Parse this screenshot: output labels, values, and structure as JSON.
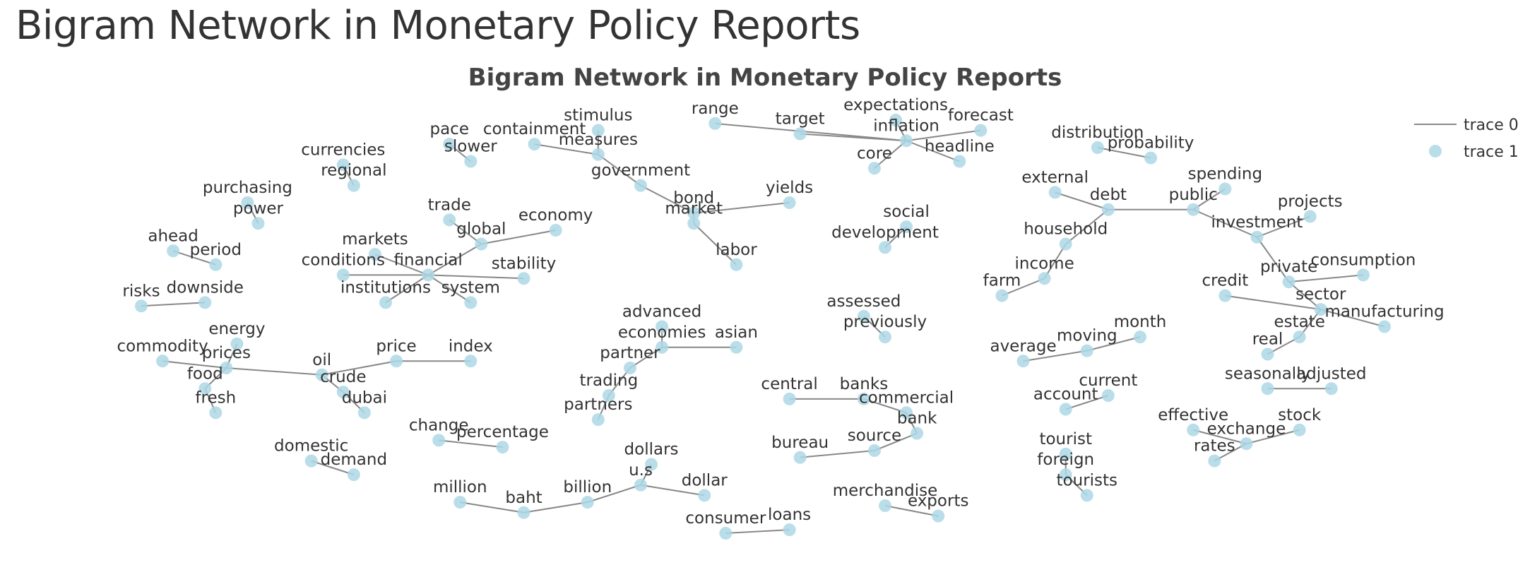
{
  "page": {
    "title": "Bigram Network in Monetary Policy Reports"
  },
  "chart_data": {
    "type": "network",
    "title": "Bigram Network in Monetary Policy Reports",
    "edge_color": "#888888",
    "node_color": "#add8e6",
    "legend": {
      "placement": "top-right",
      "entries": [
        {
          "name": "trace 0",
          "marker": "line"
        },
        {
          "name": "trace 1",
          "marker": "circle"
        }
      ]
    },
    "nodes": [
      {
        "id": "range",
        "x": 3.6,
        "y": 8.3
      },
      {
        "id": "target",
        "x": 4.0,
        "y": 8.15
      },
      {
        "id": "inflation",
        "x": 4.5,
        "y": 8.05
      },
      {
        "id": "expectations",
        "x": 4.45,
        "y": 8.35
      },
      {
        "id": "forecast",
        "x": 4.85,
        "y": 8.2
      },
      {
        "id": "headline",
        "x": 4.75,
        "y": 7.75
      },
      {
        "id": "core",
        "x": 4.35,
        "y": 7.65
      },
      {
        "id": "stimulus",
        "x": 3.05,
        "y": 8.2
      },
      {
        "id": "measures",
        "x": 3.05,
        "y": 7.85
      },
      {
        "id": "containment",
        "x": 2.75,
        "y": 8.0
      },
      {
        "id": "government",
        "x": 3.25,
        "y": 7.4
      },
      {
        "id": "bond",
        "x": 3.5,
        "y": 7.0
      },
      {
        "id": "yields",
        "x": 3.95,
        "y": 7.15
      },
      {
        "id": "market",
        "x": 3.5,
        "y": 6.85
      },
      {
        "id": "labor",
        "x": 3.7,
        "y": 6.25
      },
      {
        "id": "pace",
        "x": 2.35,
        "y": 8.0
      },
      {
        "id": "slower",
        "x": 2.45,
        "y": 7.75
      },
      {
        "id": "currencies",
        "x": 1.85,
        "y": 7.7
      },
      {
        "id": "regional",
        "x": 1.9,
        "y": 7.4
      },
      {
        "id": "purchasing",
        "x": 1.4,
        "y": 7.15
      },
      {
        "id": "power",
        "x": 1.45,
        "y": 6.85
      },
      {
        "id": "trade",
        "x": 2.35,
        "y": 6.9
      },
      {
        "id": "global",
        "x": 2.5,
        "y": 6.55
      },
      {
        "id": "economy",
        "x": 2.85,
        "y": 6.75
      },
      {
        "id": "markets",
        "x": 2.0,
        "y": 6.4
      },
      {
        "id": "financial",
        "x": 2.25,
        "y": 6.1
      },
      {
        "id": "conditions",
        "x": 1.85,
        "y": 6.1
      },
      {
        "id": "institutions",
        "x": 2.05,
        "y": 5.7
      },
      {
        "id": "system",
        "x": 2.45,
        "y": 5.7
      },
      {
        "id": "stability",
        "x": 2.7,
        "y": 6.05
      },
      {
        "id": "ahead",
        "x": 1.05,
        "y": 6.45
      },
      {
        "id": "period",
        "x": 1.25,
        "y": 6.25
      },
      {
        "id": "risks",
        "x": 0.9,
        "y": 5.65
      },
      {
        "id": "downside",
        "x": 1.2,
        "y": 5.7
      },
      {
        "id": "energy",
        "x": 1.35,
        "y": 5.1
      },
      {
        "id": "commodity",
        "x": 1.0,
        "y": 4.85
      },
      {
        "id": "prices",
        "x": 1.3,
        "y": 4.75
      },
      {
        "id": "food",
        "x": 1.2,
        "y": 4.45
      },
      {
        "id": "fresh",
        "x": 1.25,
        "y": 4.1
      },
      {
        "id": "oil",
        "x": 1.75,
        "y": 4.65
      },
      {
        "id": "crude",
        "x": 1.85,
        "y": 4.4
      },
      {
        "id": "dubai",
        "x": 1.95,
        "y": 4.1
      },
      {
        "id": "price",
        "x": 2.1,
        "y": 4.85
      },
      {
        "id": "index",
        "x": 2.45,
        "y": 4.85
      },
      {
        "id": "domestic",
        "x": 1.7,
        "y": 3.4
      },
      {
        "id": "demand",
        "x": 1.9,
        "y": 3.2
      },
      {
        "id": "change",
        "x": 2.3,
        "y": 3.7
      },
      {
        "id": "percentage",
        "x": 2.6,
        "y": 3.6
      },
      {
        "id": "million",
        "x": 2.4,
        "y": 2.8
      },
      {
        "id": "baht",
        "x": 2.7,
        "y": 2.65
      },
      {
        "id": "billion",
        "x": 3.0,
        "y": 2.8
      },
      {
        "id": "u.s",
        "x": 3.25,
        "y": 3.05
      },
      {
        "id": "dollars",
        "x": 3.3,
        "y": 3.35
      },
      {
        "id": "dollar",
        "x": 3.55,
        "y": 2.9
      },
      {
        "id": "consumer",
        "x": 3.65,
        "y": 2.35
      },
      {
        "id": "loans",
        "x": 3.95,
        "y": 2.4
      },
      {
        "id": "advanced",
        "x": 3.35,
        "y": 5.35
      },
      {
        "id": "economies",
        "x": 3.35,
        "y": 5.05
      },
      {
        "id": "asian",
        "x": 3.7,
        "y": 5.05
      },
      {
        "id": "partner",
        "x": 3.2,
        "y": 4.75
      },
      {
        "id": "trading",
        "x": 3.1,
        "y": 4.35
      },
      {
        "id": "partners",
        "x": 3.05,
        "y": 4.0
      },
      {
        "id": "central",
        "x": 3.95,
        "y": 4.3
      },
      {
        "id": "banks",
        "x": 4.3,
        "y": 4.3
      },
      {
        "id": "commercial",
        "x": 4.5,
        "y": 4.1
      },
      {
        "id": "bank",
        "x": 4.55,
        "y": 3.8
      },
      {
        "id": "source",
        "x": 4.35,
        "y": 3.55
      },
      {
        "id": "bureau",
        "x": 4.0,
        "y": 3.45
      },
      {
        "id": "merchandise",
        "x": 4.4,
        "y": 2.75
      },
      {
        "id": "exports",
        "x": 4.65,
        "y": 2.6
      },
      {
        "id": "assessed",
        "x": 4.3,
        "y": 5.5
      },
      {
        "id": "previously",
        "x": 4.4,
        "y": 5.2
      },
      {
        "id": "social",
        "x": 4.5,
        "y": 6.8
      },
      {
        "id": "development",
        "x": 4.4,
        "y": 6.5
      },
      {
        "id": "distribution",
        "x": 5.4,
        "y": 7.95
      },
      {
        "id": "probability",
        "x": 5.65,
        "y": 7.8
      },
      {
        "id": "external",
        "x": 5.2,
        "y": 7.3
      },
      {
        "id": "debt",
        "x": 5.45,
        "y": 7.05
      },
      {
        "id": "household",
        "x": 5.25,
        "y": 6.55
      },
      {
        "id": "income",
        "x": 5.15,
        "y": 6.05
      },
      {
        "id": "farm",
        "x": 4.95,
        "y": 5.8
      },
      {
        "id": "public",
        "x": 5.85,
        "y": 7.05
      },
      {
        "id": "spending",
        "x": 6.0,
        "y": 7.35
      },
      {
        "id": "investment",
        "x": 6.15,
        "y": 6.65
      },
      {
        "id": "projects",
        "x": 6.4,
        "y": 6.95
      },
      {
        "id": "private",
        "x": 6.3,
        "y": 6.0
      },
      {
        "id": "sector",
        "x": 6.45,
        "y": 5.6
      },
      {
        "id": "credit",
        "x": 6.0,
        "y": 5.8
      },
      {
        "id": "consumption",
        "x": 6.65,
        "y": 6.1
      },
      {
        "id": "manufacturing",
        "x": 6.75,
        "y": 5.35
      },
      {
        "id": "estate",
        "x": 6.35,
        "y": 5.2
      },
      {
        "id": "real",
        "x": 6.2,
        "y": 4.95
      },
      {
        "id": "average",
        "x": 5.05,
        "y": 4.85
      },
      {
        "id": "moving",
        "x": 5.35,
        "y": 5.0
      },
      {
        "id": "month",
        "x": 5.6,
        "y": 5.2
      },
      {
        "id": "seasonally",
        "x": 6.2,
        "y": 4.45
      },
      {
        "id": "adjusted",
        "x": 6.5,
        "y": 4.45
      },
      {
        "id": "current",
        "x": 5.45,
        "y": 4.35
      },
      {
        "id": "account",
        "x": 5.25,
        "y": 4.15
      },
      {
        "id": "effective",
        "x": 5.85,
        "y": 3.85
      },
      {
        "id": "exchange",
        "x": 6.1,
        "y": 3.65
      },
      {
        "id": "stock",
        "x": 6.35,
        "y": 3.85
      },
      {
        "id": "rates",
        "x": 5.95,
        "y": 3.4
      },
      {
        "id": "tourist",
        "x": 5.25,
        "y": 3.5
      },
      {
        "id": "foreign",
        "x": 5.25,
        "y": 3.2
      },
      {
        "id": "tourists",
        "x": 5.35,
        "y": 2.9
      }
    ],
    "edges": [
      [
        "range",
        "inflation"
      ],
      [
        "target",
        "inflation"
      ],
      [
        "inflation",
        "expectations"
      ],
      [
        "inflation",
        "forecast"
      ],
      [
        "headline",
        "inflation"
      ],
      [
        "core",
        "inflation"
      ],
      [
        "stimulus",
        "measures"
      ],
      [
        "containment",
        "measures"
      ],
      [
        "government",
        "measures"
      ],
      [
        "government",
        "bond"
      ],
      [
        "bond",
        "yields"
      ],
      [
        "bond",
        "market"
      ],
      [
        "labor",
        "market"
      ],
      [
        "slower",
        "pace"
      ],
      [
        "regional",
        "currencies"
      ],
      [
        "purchasing",
        "power"
      ],
      [
        "trade",
        "global"
      ],
      [
        "global",
        "economy"
      ],
      [
        "global",
        "financial"
      ],
      [
        "markets",
        "financial"
      ],
      [
        "financial",
        "conditions"
      ],
      [
        "financial",
        "institutions"
      ],
      [
        "financial",
        "system"
      ],
      [
        "financial",
        "stability"
      ],
      [
        "ahead",
        "period"
      ],
      [
        "downside",
        "risks"
      ],
      [
        "energy",
        "prices"
      ],
      [
        "commodity",
        "prices"
      ],
      [
        "food",
        "prices"
      ],
      [
        "fresh",
        "food"
      ],
      [
        "oil",
        "prices"
      ],
      [
        "crude",
        "oil"
      ],
      [
        "dubai",
        "crude"
      ],
      [
        "oil",
        "price"
      ],
      [
        "price",
        "index"
      ],
      [
        "domestic",
        "demand"
      ],
      [
        "percentage",
        "change"
      ],
      [
        "million",
        "baht"
      ],
      [
        "billion",
        "baht"
      ],
      [
        "u.s",
        "billion"
      ],
      [
        "u.s",
        "dollars"
      ],
      [
        "u.s",
        "dollar"
      ],
      [
        "consumer",
        "loans"
      ],
      [
        "advanced",
        "economies"
      ],
      [
        "asian",
        "economies"
      ],
      [
        "trading",
        "partner"
      ],
      [
        "trading",
        "partners"
      ],
      [
        "partner",
        "economies"
      ],
      [
        "central",
        "banks"
      ],
      [
        "commercial",
        "banks"
      ],
      [
        "commercial",
        "bank"
      ],
      [
        "bank",
        "source"
      ],
      [
        "bureau",
        "source"
      ],
      [
        "merchandise",
        "exports"
      ],
      [
        "assessed",
        "previously"
      ],
      [
        "social",
        "development"
      ],
      [
        "distribution",
        "probability"
      ],
      [
        "external",
        "debt"
      ],
      [
        "household",
        "debt"
      ],
      [
        "public",
        "debt"
      ],
      [
        "household",
        "income"
      ],
      [
        "farm",
        "income"
      ],
      [
        "public",
        "spending"
      ],
      [
        "public",
        "investment"
      ],
      [
        "investment",
        "projects"
      ],
      [
        "private",
        "investment"
      ],
      [
        "private",
        "sector"
      ],
      [
        "credit",
        "sector"
      ],
      [
        "private",
        "consumption"
      ],
      [
        "manufacturing",
        "sector"
      ],
      [
        "real",
        "estate"
      ],
      [
        "estate",
        "sector"
      ],
      [
        "moving",
        "average"
      ],
      [
        "month",
        "moving"
      ],
      [
        "seasonally",
        "adjusted"
      ],
      [
        "current",
        "account"
      ],
      [
        "effective",
        "exchange"
      ],
      [
        "exchange",
        "rates"
      ],
      [
        "stock",
        "exchange"
      ],
      [
        "foreign",
        "tourist"
      ],
      [
        "foreign",
        "tourists"
      ]
    ]
  }
}
